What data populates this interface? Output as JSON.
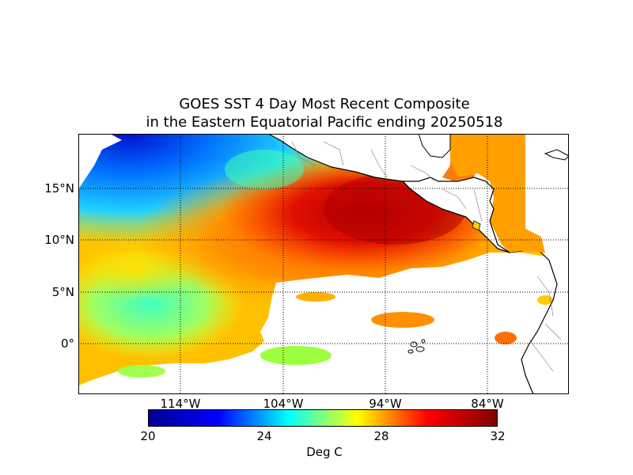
{
  "title_line1": "GOES SST 4 Day Most Recent Composite",
  "title_line2": "in the Eastern Equatorial Pacific ending 20250518",
  "lat_labels": [
    "15°N",
    "10°N",
    "5°N",
    "0°"
  ],
  "lon_labels": [
    "114°W",
    "104°W",
    "94°W",
    "84°W"
  ],
  "colorbar": {
    "min": 20,
    "max": 32,
    "ticks": [
      "20",
      "24",
      "28",
      "32"
    ],
    "label": "Deg C",
    "colormap": [
      "#00008f",
      "#0000ff",
      "#00ffff",
      "#ffff00",
      "#ff0000",
      "#800000"
    ]
  }
}
